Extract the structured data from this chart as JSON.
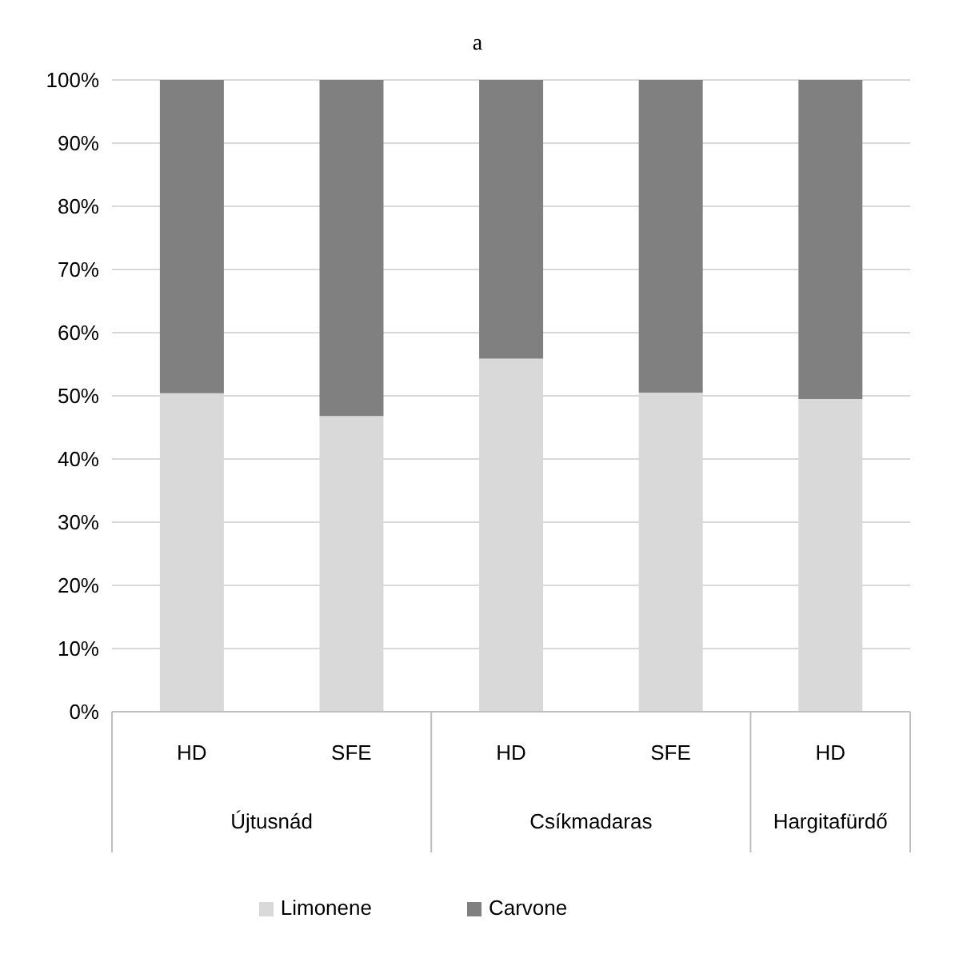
{
  "chart_data": {
    "type": "bar",
    "title": "a",
    "stacked": true,
    "categories": [
      "HD",
      "SFE",
      "HD",
      "SFE",
      "HD"
    ],
    "annotations": [
      "Újtusnád",
      "Csíkmadaras",
      "Hargitafürdő"
    ],
    "series": [
      {
        "name": "Limonene",
        "color": "#d9d9d9",
        "values": [
          50.4,
          46.8,
          55.9,
          50.5,
          49.5
        ]
      },
      {
        "name": "Carvone",
        "color": "#808080",
        "values": [
          49.6,
          53.2,
          44.1,
          49.5,
          50.5
        ]
      }
    ],
    "ylim": [
      0,
      100
    ],
    "yticks": [
      {
        "value": 0,
        "label": "0%"
      },
      {
        "value": 10,
        "label": "10%"
      },
      {
        "value": 20,
        "label": "20%"
      },
      {
        "value": 30,
        "label": "30%"
      },
      {
        "value": 40,
        "label": "40%"
      },
      {
        "value": 50,
        "label": "50%"
      },
      {
        "value": 60,
        "label": "60%"
      },
      {
        "value": 70,
        "label": "70%"
      },
      {
        "value": 80,
        "label": "80%"
      },
      {
        "value": 90,
        "label": "90%"
      },
      {
        "value": 100,
        "label": "100%"
      }
    ],
    "grid": "y",
    "legend": "bottom"
  }
}
